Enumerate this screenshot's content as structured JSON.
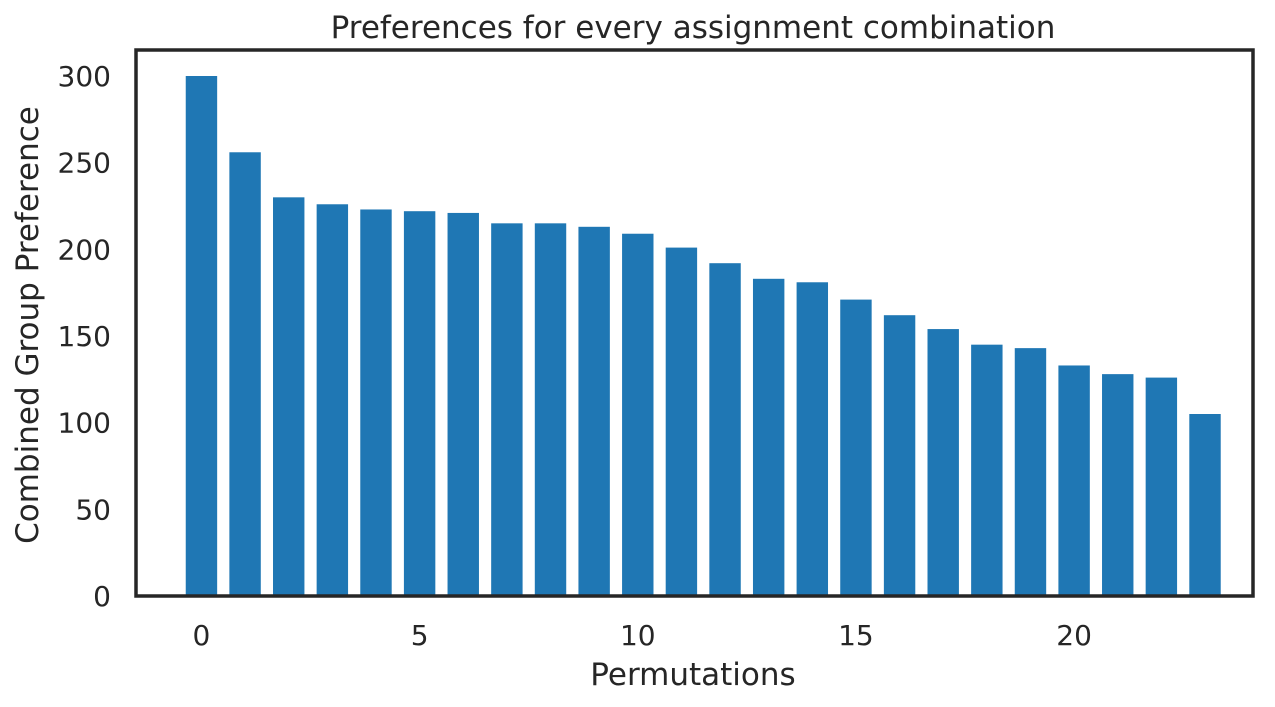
{
  "chart_data": {
    "type": "bar",
    "title": "Preferences for every assignment combination",
    "xlabel": "Permutations",
    "ylabel": "Combined Group Preference",
    "x": [
      0,
      1,
      2,
      3,
      4,
      5,
      6,
      7,
      8,
      9,
      10,
      11,
      12,
      13,
      14,
      15,
      16,
      17,
      18,
      19,
      20,
      21,
      22,
      23
    ],
    "values": [
      300,
      256,
      230,
      226,
      223,
      222,
      221,
      215,
      215,
      213,
      209,
      201,
      192,
      183,
      181,
      171,
      162,
      154,
      145,
      143,
      133,
      128,
      126,
      105
    ],
    "xlim": [
      -1.5,
      24.1
    ],
    "ylim": [
      0,
      315
    ],
    "xticks": [
      0,
      5,
      10,
      15,
      20
    ],
    "yticks": [
      0,
      50,
      100,
      150,
      200,
      250,
      300
    ],
    "xtick_labels": [
      "0",
      "5",
      "10",
      "15",
      "20"
    ],
    "ytick_labels": [
      "0",
      "50",
      "100",
      "150",
      "200",
      "250",
      "300"
    ],
    "bar_color": "#1f77b4",
    "grid": false,
    "legend": "none"
  }
}
